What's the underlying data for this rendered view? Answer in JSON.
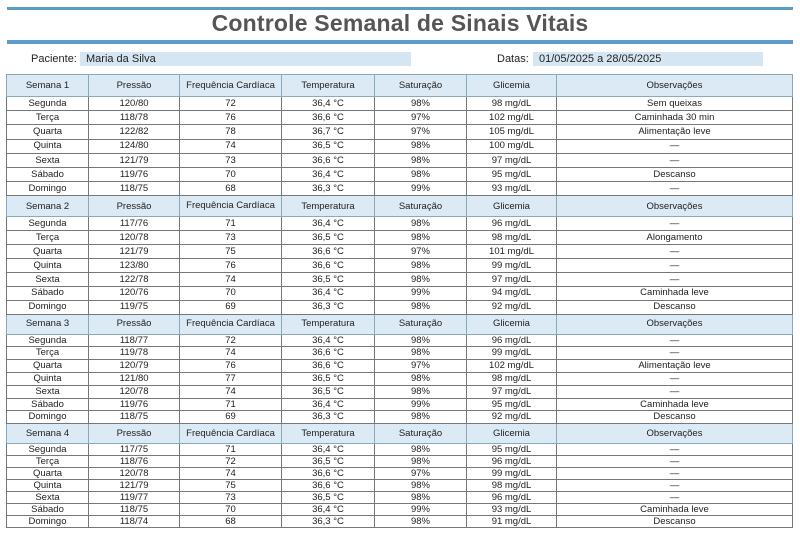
{
  "title": "Controle Semanal de Sinais Vitais",
  "patient_label": "Paciente:",
  "patient": "Maria da Silva",
  "dates_label": "Datas:",
  "dates": "01/05/2025 a 28/05/2025",
  "columns": [
    "Pressão",
    "Frequência Cardíaca",
    "Temperatura",
    "Saturação",
    "Glicemia",
    "Observações"
  ],
  "weeks": [
    {
      "label": "Semana 1",
      "rows": [
        [
          "Segunda",
          "120/80",
          "72",
          "36,4 °C",
          "98%",
          "98 mg/dL",
          "Sem queixas"
        ],
        [
          "Terça",
          "118/78",
          "76",
          "36,6 °C",
          "97%",
          "102 mg/dL",
          "Caminhada 30 min"
        ],
        [
          "Quarta",
          "122/82",
          "78",
          "36,7 °C",
          "97%",
          "105 mg/dL",
          "Alimentação leve"
        ],
        [
          "Quinta",
          "124/80",
          "74",
          "36,5 °C",
          "98%",
          "100 mg/dL",
          "—"
        ],
        [
          "Sexta",
          "121/79",
          "73",
          "36,6 °C",
          "98%",
          "97 mg/dL",
          "—"
        ],
        [
          "Sábado",
          "119/76",
          "70",
          "36,4 °C",
          "98%",
          "95 mg/dL",
          "Descanso"
        ],
        [
          "Domingo",
          "118/75",
          "68",
          "36,3 °C",
          "99%",
          "93 mg/dL",
          "—"
        ]
      ]
    },
    {
      "label": "Semana 2",
      "rows": [
        [
          "Segunda",
          "117/76",
          "71",
          "36,4 °C",
          "98%",
          "96 mg/dL",
          "—"
        ],
        [
          "Terça",
          "120/78",
          "73",
          "36,5 °C",
          "98%",
          "98 mg/dL",
          "Alongamento"
        ],
        [
          "Quarta",
          "121/79",
          "75",
          "36,6 °C",
          "97%",
          "101 mg/dL",
          "—"
        ],
        [
          "Quinta",
          "123/80",
          "76",
          "36,6 °C",
          "98%",
          "99 mg/dL",
          "—"
        ],
        [
          "Sexta",
          "122/78",
          "74",
          "36,5 °C",
          "98%",
          "97 mg/dL",
          "—"
        ],
        [
          "Sábado",
          "120/76",
          "70",
          "36,4 °C",
          "99%",
          "94 mg/dL",
          "Caminhada leve"
        ],
        [
          "Domingo",
          "119/75",
          "69",
          "36,3 °C",
          "98%",
          "92 mg/dL",
          "Descanso"
        ]
      ]
    },
    {
      "label": "Semana 3",
      "rows": [
        [
          "Segunda",
          "118/77",
          "72",
          "36,4 °C",
          "98%",
          "96 mg/dL",
          "—"
        ],
        [
          "Terça",
          "119/78",
          "74",
          "36,6 °C",
          "98%",
          "99 mg/dL",
          "—"
        ],
        [
          "Quarta",
          "120/79",
          "76",
          "36,6 °C",
          "97%",
          "102 mg/dL",
          "Alimentação leve"
        ],
        [
          "Quinta",
          "121/80",
          "77",
          "36,5 °C",
          "98%",
          "98 mg/dL",
          "—"
        ],
        [
          "Sexta",
          "120/78",
          "74",
          "36,5 °C",
          "98%",
          "97 mg/dL",
          "—"
        ],
        [
          "Sábado",
          "119/76",
          "71",
          "36,4 °C",
          "99%",
          "95 mg/dL",
          "Caminhada leve"
        ],
        [
          "Domingo",
          "118/75",
          "69",
          "36,3 °C",
          "98%",
          "92 mg/dL",
          "Descanso"
        ]
      ]
    },
    {
      "label": "Semana 4",
      "rows": [
        [
          "Segunda",
          "117/75",
          "71",
          "36,4 °C",
          "98%",
          "95 mg/dL",
          "—"
        ],
        [
          "Terça",
          "118/76",
          "72",
          "36,5 °C",
          "98%",
          "96 mg/dL",
          "—"
        ],
        [
          "Quarta",
          "120/78",
          "74",
          "36,6 °C",
          "97%",
          "99 mg/dL",
          "—"
        ],
        [
          "Quinta",
          "121/79",
          "75",
          "36,6 °C",
          "98%",
          "98 mg/dL",
          "—"
        ],
        [
          "Sexta",
          "119/77",
          "73",
          "36,5 °C",
          "98%",
          "96 mg/dL",
          "—"
        ],
        [
          "Sábado",
          "118/75",
          "70",
          "36,4 °C",
          "99%",
          "93 mg/dL",
          "Caminhada leve"
        ],
        [
          "Domingo",
          "118/74",
          "68",
          "36,3 °C",
          "98%",
          "91 mg/dL",
          "Descanso"
        ]
      ]
    }
  ]
}
